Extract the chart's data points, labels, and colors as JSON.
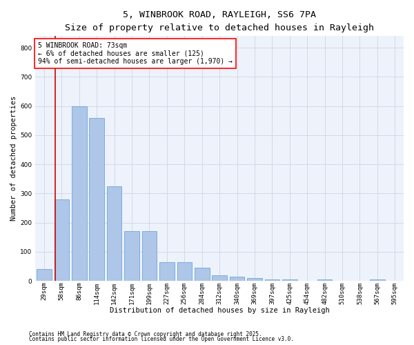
{
  "title_line1": "5, WINBROOK ROAD, RAYLEIGH, SS6 7PA",
  "title_line2": "Size of property relative to detached houses in Rayleigh",
  "xlabel": "Distribution of detached houses by size in Rayleigh",
  "ylabel": "Number of detached properties",
  "categories": [
    "29sqm",
    "58sqm",
    "86sqm",
    "114sqm",
    "142sqm",
    "171sqm",
    "199sqm",
    "227sqm",
    "256sqm",
    "284sqm",
    "312sqm",
    "340sqm",
    "369sqm",
    "397sqm",
    "425sqm",
    "454sqm",
    "482sqm",
    "510sqm",
    "538sqm",
    "567sqm",
    "595sqm"
  ],
  "bar_values": [
    40,
    280,
    600,
    560,
    325,
    170,
    170,
    65,
    65,
    45,
    20,
    15,
    10,
    5,
    5,
    0,
    5,
    0,
    0,
    5,
    0
  ],
  "bar_color": "#aec6e8",
  "bar_edge_color": "#5b9bd5",
  "grid_color": "#ccd6e8",
  "background_color": "#eef2fa",
  "vline_color": "#cc0000",
  "vline_pos": 0.62,
  "annotation_text_line1": "5 WINBROOK ROAD: 73sqm",
  "annotation_text_line2": "← 6% of detached houses are smaller (125)",
  "annotation_text_line3": "94% of semi-detached houses are larger (1,970) →",
  "ylim": [
    0,
    840
  ],
  "yticks": [
    0,
    100,
    200,
    300,
    400,
    500,
    600,
    700,
    800
  ],
  "footer_line1": "Contains HM Land Registry data © Crown copyright and database right 2025.",
  "footer_line2": "Contains public sector information licensed under the Open Government Licence v3.0.",
  "title_fontsize": 9.5,
  "subtitle_fontsize": 8.5,
  "axis_label_fontsize": 7.5,
  "tick_fontsize": 6.5,
  "annotation_fontsize": 7,
  "footer_fontsize": 5.5
}
